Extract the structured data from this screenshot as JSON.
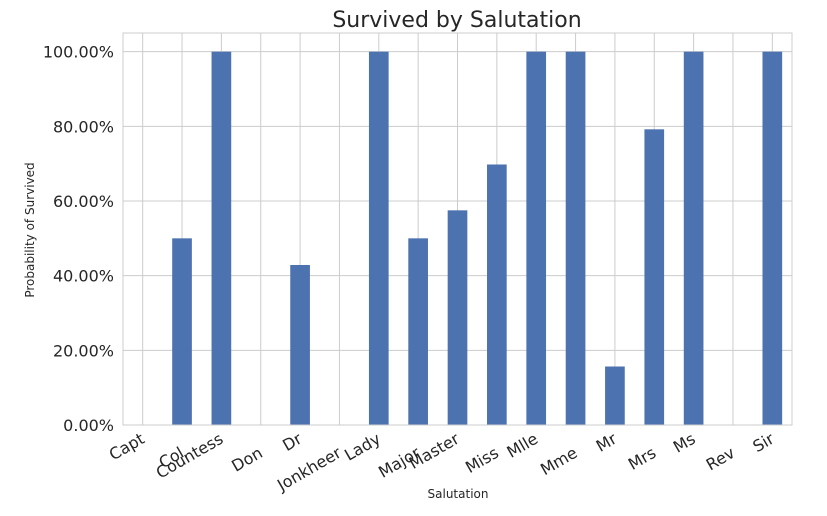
{
  "chart_data": {
    "type": "bar",
    "title": "Survived by Salutation",
    "xlabel": "Salutation",
    "ylabel": "Probability of Survived",
    "categories": [
      "Capt",
      "Col",
      "Countess",
      "Don",
      "Dr",
      "Jonkheer",
      "Lady",
      "Major",
      "Master",
      "Miss",
      "Mlle",
      "Mme",
      "Mr",
      "Mrs",
      "Ms",
      "Rev",
      "Sir"
    ],
    "values": [
      0.0,
      0.5,
      1.0,
      0.0,
      0.4286,
      0.0,
      1.0,
      0.5,
      0.575,
      0.6978,
      1.0,
      1.0,
      0.1567,
      0.792,
      1.0,
      0.0,
      1.0
    ],
    "ylim": [
      0,
      1.05
    ],
    "yticks": [
      0,
      0.2,
      0.4,
      0.6,
      0.8,
      1.0
    ],
    "ytick_labels": [
      "0.00%",
      "20.00%",
      "40.00%",
      "60.00%",
      "80.00%",
      "100.00%"
    ],
    "grid": true,
    "bar_color": "#4c72b0",
    "grid_color": "#cccccc"
  }
}
